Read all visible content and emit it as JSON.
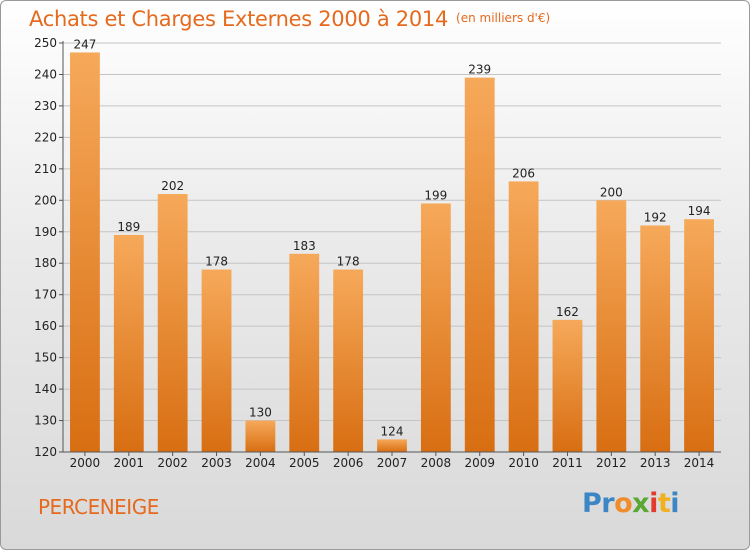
{
  "title": "Achats et Charges Externes 2000 à 2014",
  "subtitle": "(en milliers d'€)",
  "commune": "PERCENEIGE",
  "logo": {
    "parts": [
      {
        "text": "Pr",
        "color": "#3d86c6"
      },
      {
        "text": "o",
        "color": "#f08c2a"
      },
      {
        "text": "x",
        "color": "#5aa832"
      },
      {
        "text": "i",
        "color": "#e23b2e"
      },
      {
        "text": "t",
        "color": "#f0b020"
      },
      {
        "text": "i",
        "color": "#3d86c6"
      }
    ]
  },
  "colors": {
    "accent": "#e56a1e",
    "bar_top": "#f6a95a",
    "bar_bottom": "#d86e12"
  },
  "chart_data": {
    "type": "bar",
    "title": "Achats et Charges Externes 2000 à 2014",
    "subtitle": "(en milliers d'€)",
    "categories": [
      "2000",
      "2001",
      "2002",
      "2003",
      "2004",
      "2005",
      "2006",
      "2007",
      "2008",
      "2009",
      "2010",
      "2011",
      "2012",
      "2013",
      "2014"
    ],
    "values": [
      247,
      189,
      202,
      178,
      130,
      183,
      178,
      124,
      199,
      239,
      206,
      162,
      200,
      192,
      194
    ],
    "ylim": [
      120,
      250
    ],
    "yticks": [
      120,
      130,
      140,
      150,
      160,
      170,
      180,
      190,
      200,
      210,
      220,
      230,
      240,
      250
    ],
    "grid": true,
    "legend": "none"
  }
}
